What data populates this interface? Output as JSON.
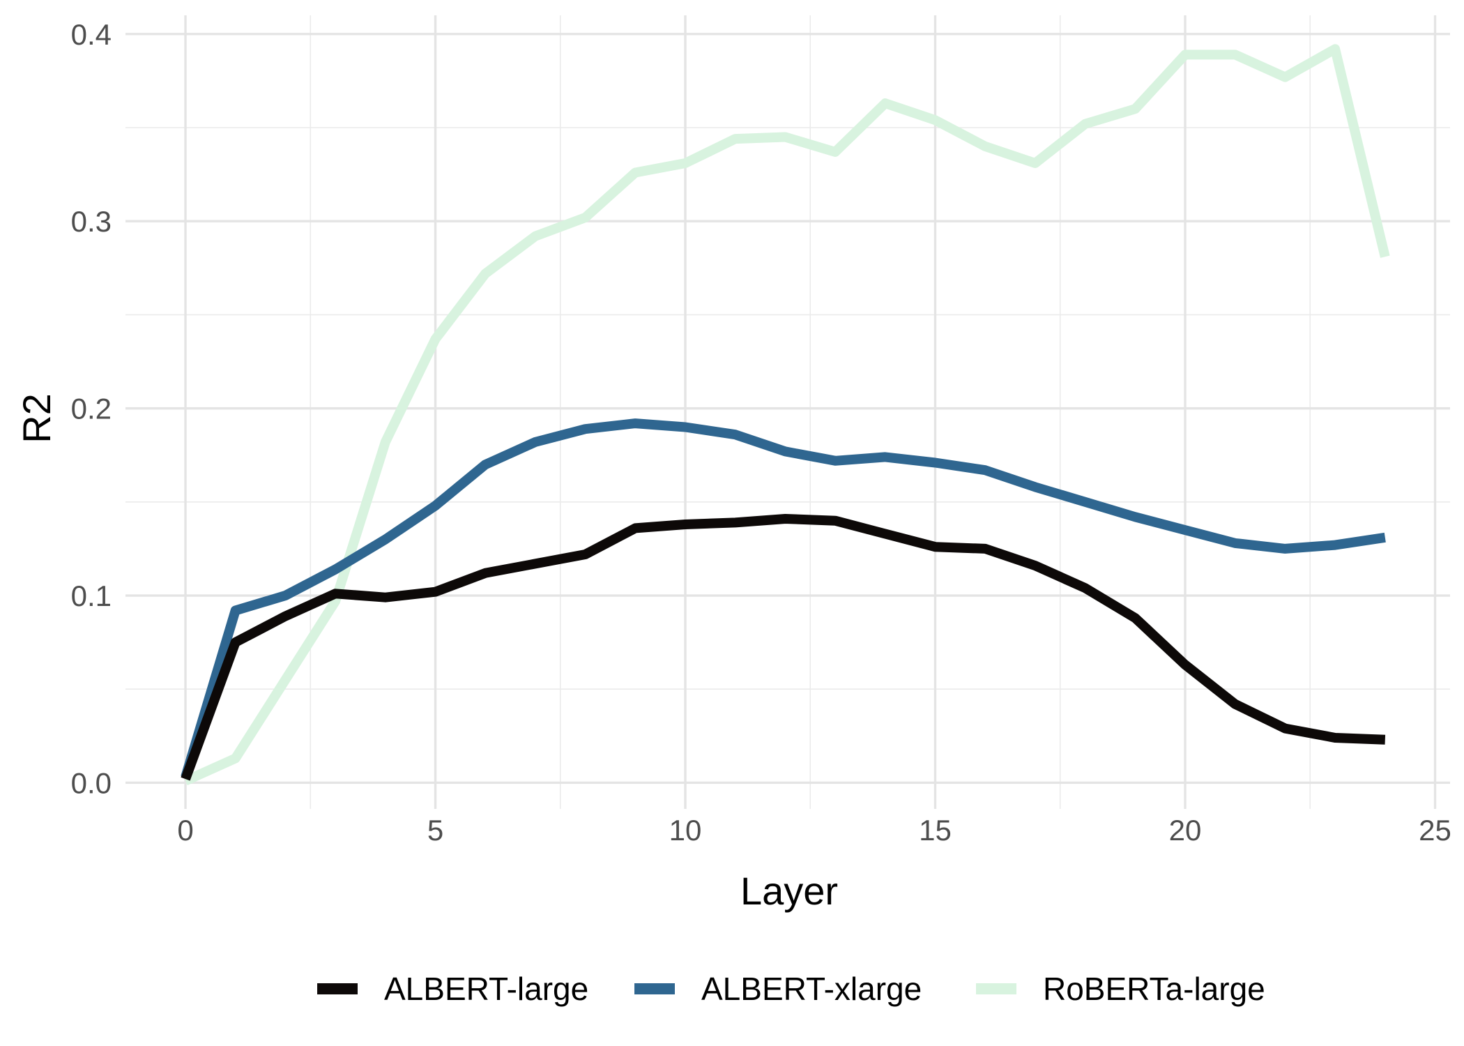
{
  "chart_data": {
    "type": "line",
    "title": "",
    "xlabel": "Layer",
    "ylabel": "R2",
    "xlim": [
      -1.2,
      25.3
    ],
    "ylim": [
      -0.014,
      0.41
    ],
    "x_ticks": [
      0,
      5,
      10,
      15,
      20,
      25
    ],
    "x_tick_labels": [
      "0",
      "5",
      "10",
      "15",
      "20",
      "25"
    ],
    "x_minor_ticks": [
      2.5,
      7.5,
      12.5,
      17.5,
      22.5
    ],
    "y_ticks": [
      0.0,
      0.1,
      0.2,
      0.3,
      0.4
    ],
    "y_tick_labels": [
      "0.0",
      "0.1",
      "0.2",
      "0.3",
      "0.4"
    ],
    "y_minor_ticks": [
      0.05,
      0.15,
      0.25,
      0.35
    ],
    "grid": true,
    "legend_position": "bottom",
    "x": [
      0,
      1,
      2,
      3,
      4,
      5,
      6,
      7,
      8,
      9,
      10,
      11,
      12,
      13,
      14,
      15,
      16,
      17,
      18,
      19,
      20,
      21,
      22,
      23,
      24
    ],
    "series": [
      {
        "name": "ALBERT-large",
        "color": "#0d0908",
        "values": [
          0.002,
          0.075,
          0.089,
          0.101,
          0.099,
          0.102,
          0.112,
          0.117,
          0.122,
          0.136,
          0.138,
          0.139,
          0.141,
          0.14,
          0.133,
          0.126,
          0.125,
          0.116,
          0.104,
          0.088,
          0.063,
          0.042,
          0.029,
          0.024,
          0.023
        ]
      },
      {
        "name": "ALBERT-xlarge",
        "color": "#2f6690",
        "values": [
          0.003,
          0.092,
          0.1,
          0.114,
          0.13,
          0.148,
          0.17,
          0.182,
          0.189,
          0.192,
          0.19,
          0.186,
          0.177,
          0.172,
          0.174,
          0.171,
          0.167,
          0.158,
          0.15,
          0.142,
          0.135,
          0.128,
          0.125,
          0.127,
          0.131
        ]
      },
      {
        "name": "RoBERTa-large",
        "color": "#d8f3df",
        "values": [
          0.001,
          0.013,
          0.055,
          0.097,
          0.182,
          0.237,
          0.272,
          0.292,
          0.302,
          0.326,
          0.331,
          0.344,
          0.345,
          0.337,
          0.363,
          0.354,
          0.34,
          0.331,
          0.352,
          0.36,
          0.389,
          0.389,
          0.377,
          0.392,
          0.281
        ]
      }
    ]
  }
}
